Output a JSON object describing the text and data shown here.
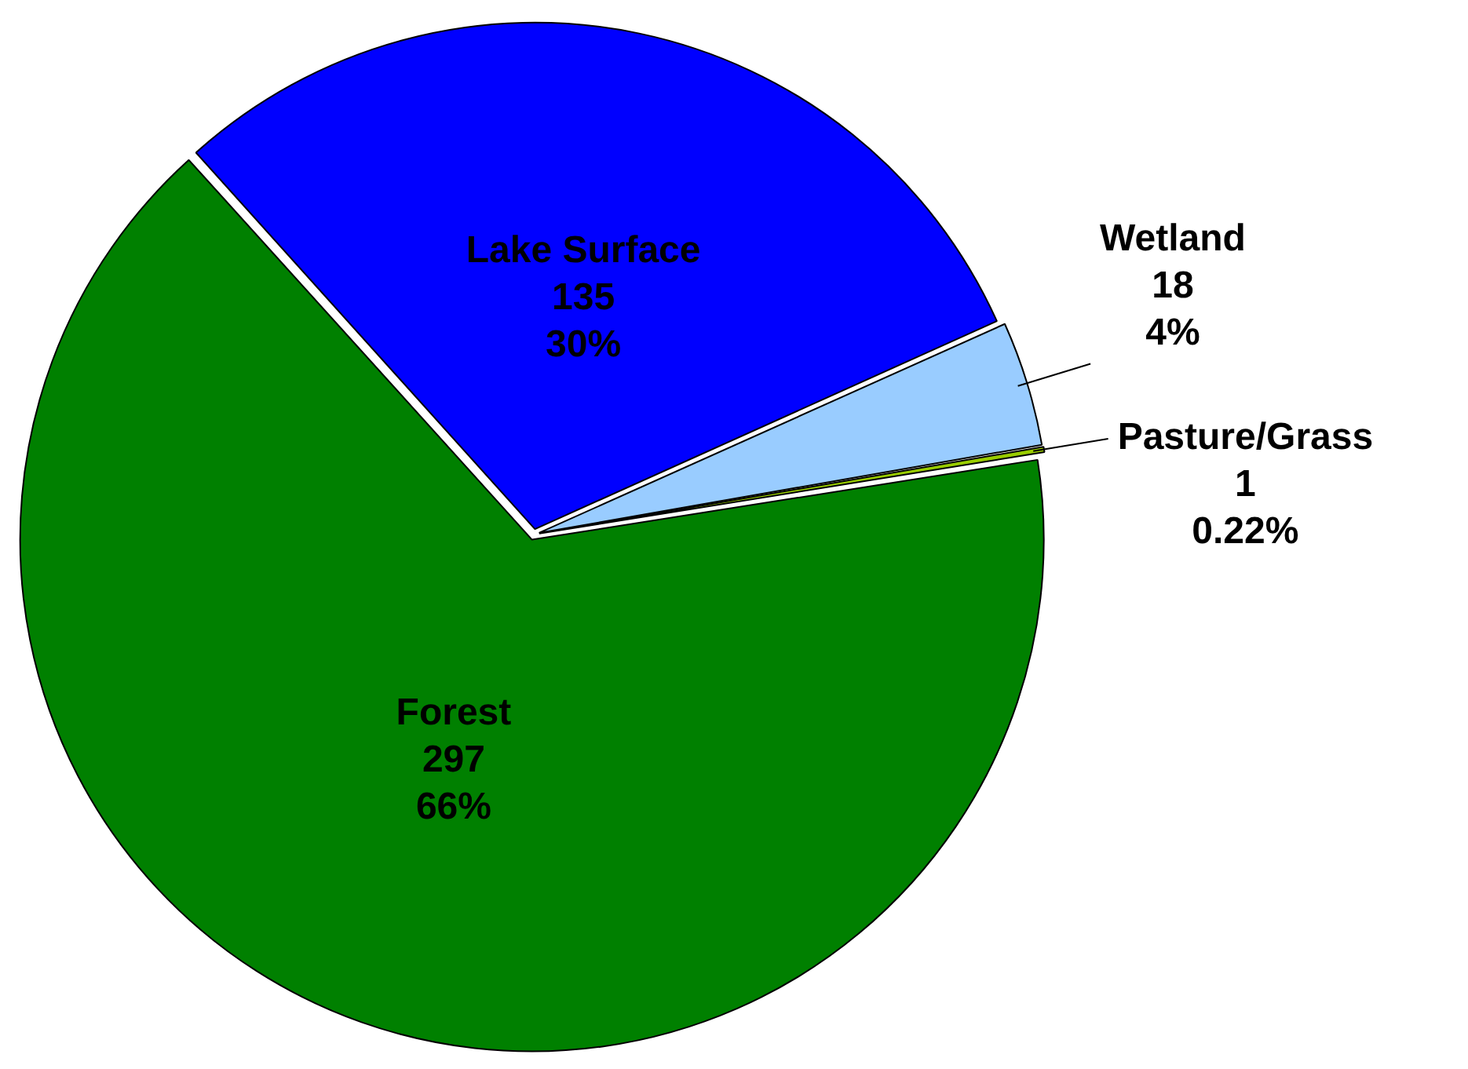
{
  "chart_data": {
    "type": "pie",
    "categories": [
      "Lake Surface",
      "Wetland",
      "Pasture/Grass",
      "Forest"
    ],
    "values": [
      135,
      18,
      1,
      297
    ],
    "colors": [
      "#0000ff",
      "#99ccff",
      "#99cc00",
      "#008000"
    ],
    "value_labels": [
      "135\n30%",
      "18\n4%",
      "1\n0.22%",
      "297\n66%"
    ],
    "legend": false
  }
}
